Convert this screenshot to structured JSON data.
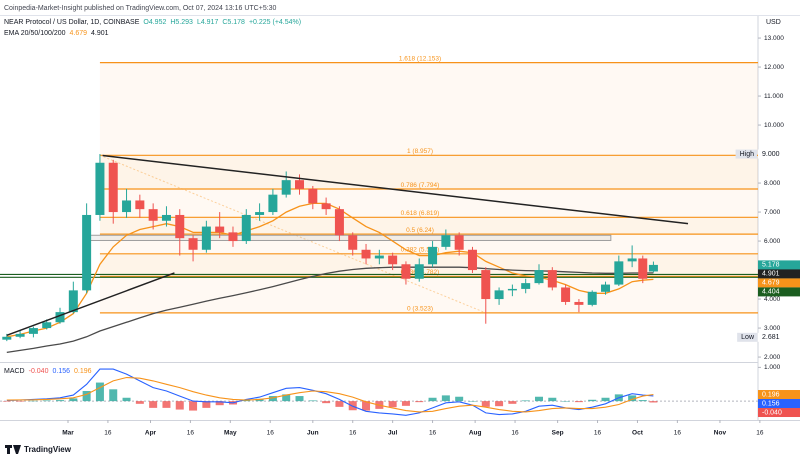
{
  "header": {
    "publisher": "Coinpedia-Market-Insight published on TradingView.com, Oct 07, 2024 13:16 UTC+5:30",
    "symbol": "NEAR Protocol / US Dollar, 1D, COINBASE",
    "ohlc": [
      "O4.952",
      "H5.293",
      "L4.917",
      "C5.178",
      "+0.225 (+4.54%)"
    ],
    "ema_label": "EMA 20/50/100/200",
    "ema_values": [
      "4.679",
      "4.901"
    ]
  },
  "footer": "TradingView",
  "chart_data": [
    {
      "type": "candlestick",
      "unit": "USD",
      "x": [
        "Feb 7",
        "Feb 12",
        "Feb 17",
        "Feb 22",
        "Feb 27",
        "Mar 3",
        "Mar 8",
        "Mar 13",
        "Mar 18",
        "Mar 23",
        "Mar 28",
        "Apr 2",
        "Apr 7",
        "Apr 12",
        "Apr 17",
        "Apr 22",
        "Apr 27",
        "May 2",
        "May 7",
        "May 12",
        "May 17",
        "May 22",
        "May 27",
        "Jun 1",
        "Jun 6",
        "Jun 11",
        "Jun 16",
        "Jun 21",
        "Jun 26",
        "Jul 1",
        "Jul 6",
        "Jul 11",
        "Jul 16",
        "Jul 21",
        "Jul 26",
        "Jul 31",
        "Aug 5",
        "Aug 10",
        "Aug 15",
        "Aug 20",
        "Aug 25",
        "Aug 30",
        "Sep 4",
        "Sep 9",
        "Sep 14",
        "Sep 19",
        "Sep 24",
        "Sep 29",
        "Oct 3",
        "Oct 7"
      ],
      "open": [
        2.6,
        2.7,
        2.8,
        3.0,
        3.2,
        3.55,
        4.3,
        6.9,
        8.7,
        7.0,
        7.4,
        7.1,
        6.7,
        6.9,
        6.1,
        5.7,
        6.5,
        6.3,
        6.0,
        6.9,
        7.0,
        7.6,
        8.1,
        7.8,
        7.3,
        7.1,
        6.2,
        5.7,
        5.4,
        5.5,
        5.2,
        4.7,
        5.2,
        5.8,
        6.2,
        5.7,
        5.0,
        4.0,
        4.3,
        4.35,
        4.55,
        5.0,
        4.4,
        3.9,
        3.8,
        4.25,
        4.5,
        5.3,
        5.4,
        4.952
      ],
      "high": [
        2.8,
        2.9,
        3.05,
        3.3,
        3.7,
        4.6,
        7.3,
        9.0,
        8.8,
        7.8,
        7.6,
        7.3,
        7.2,
        7.1,
        6.2,
        6.7,
        7.0,
        6.5,
        7.1,
        7.3,
        7.8,
        8.4,
        8.3,
        7.9,
        7.5,
        7.2,
        6.3,
        5.9,
        5.7,
        5.6,
        5.3,
        5.4,
        6.0,
        6.4,
        6.3,
        5.8,
        5.1,
        4.4,
        4.5,
        4.7,
        5.2,
        5.1,
        4.5,
        4.0,
        4.3,
        4.6,
        5.5,
        5.85,
        5.5,
        5.293
      ],
      "low": [
        2.55,
        2.65,
        2.68,
        2.95,
        3.15,
        3.5,
        4.2,
        6.7,
        6.6,
        6.8,
        6.8,
        6.4,
        6.5,
        5.5,
        5.3,
        5.6,
        6.1,
        5.8,
        5.9,
        6.7,
        6.9,
        7.5,
        7.6,
        7.1,
        6.9,
        6.0,
        5.5,
        5.2,
        5.2,
        5.0,
        4.5,
        4.6,
        5.1,
        5.7,
        5.5,
        4.9,
        3.15,
        3.8,
        4.1,
        4.2,
        4.5,
        4.3,
        3.8,
        3.55,
        3.75,
        4.15,
        4.45,
        5.1,
        4.55,
        4.917
      ],
      "close": [
        2.7,
        2.8,
        3.0,
        3.2,
        3.55,
        4.3,
        6.9,
        8.7,
        7.0,
        7.4,
        7.1,
        6.7,
        6.9,
        6.1,
        5.7,
        6.5,
        6.3,
        6.0,
        6.9,
        7.0,
        7.6,
        8.1,
        7.8,
        7.3,
        7.1,
        6.2,
        5.7,
        5.4,
        5.5,
        5.2,
        4.7,
        5.2,
        5.8,
        6.2,
        5.7,
        5.0,
        4.0,
        4.3,
        4.35,
        4.55,
        5.0,
        4.4,
        3.9,
        3.8,
        4.25,
        4.5,
        5.3,
        5.4,
        4.7,
        5.178
      ],
      "up_color": "#26a69a",
      "down_color": "#ef5350",
      "series": [
        {
          "color": "#f7931a",
          "values": [
            2.7,
            2.78,
            2.9,
            3.0,
            3.2,
            3.5,
            4.2,
            5.2,
            5.8,
            6.2,
            6.4,
            6.5,
            6.6,
            6.5,
            6.3,
            6.3,
            6.3,
            6.2,
            6.35,
            6.5,
            6.7,
            7.0,
            7.2,
            7.3,
            7.3,
            7.1,
            6.8,
            6.5,
            6.3,
            6.0,
            5.7,
            5.5,
            5.5,
            5.6,
            5.65,
            5.6,
            5.3,
            5.1,
            4.9,
            4.8,
            4.75,
            4.65,
            4.5,
            4.3,
            4.2,
            4.2,
            4.35,
            4.6,
            4.65,
            4.679
          ]
        },
        {
          "color": "#4a4a4a",
          "values": [
            2.16,
            2.23,
            2.3,
            2.38,
            2.45,
            2.55,
            2.7,
            2.9,
            3.05,
            3.2,
            3.35,
            3.5,
            3.62,
            3.72,
            3.82,
            3.93,
            4.03,
            4.12,
            4.22,
            4.32,
            4.43,
            4.55,
            4.67,
            4.78,
            4.88,
            4.96,
            5.02,
            5.06,
            5.08,
            5.1,
            5.1,
            5.1,
            5.1,
            5.1,
            5.1,
            5.08,
            5.05,
            5.02,
            5.0,
            4.98,
            4.97,
            4.96,
            4.94,
            4.92,
            4.9,
            4.89,
            4.89,
            4.9,
            4.9,
            4.901
          ]
        }
      ],
      "ylim": [
        1.83,
        13.45
      ],
      "yticks": [
        {
          "value": 2,
          "label": "2.000"
        },
        {
          "value": 3,
          "label": "3.000"
        },
        {
          "value": 4,
          "label": "4.000"
        },
        {
          "value": 5,
          "label": "5.000"
        },
        {
          "value": 6,
          "label": "6.000"
        },
        {
          "value": 7,
          "label": "7.000"
        },
        {
          "value": 8,
          "label": "8.000"
        },
        {
          "value": 9,
          "label": "9.000"
        },
        {
          "value": 10,
          "label": "10.000"
        },
        {
          "value": 11,
          "label": "11.000"
        },
        {
          "value": 12,
          "label": "12.000"
        },
        {
          "value": 13,
          "label": "13.000"
        }
      ],
      "xticks": [
        {
          "value": "Mar 1",
          "label": "Mar"
        },
        {
          "value": "Mar 16",
          "label": "16"
        },
        {
          "value": "Apr 1",
          "label": "Apr"
        },
        {
          "value": "Apr 16",
          "label": "16"
        },
        {
          "value": "May 1",
          "label": "May"
        },
        {
          "value": "May 16",
          "label": "16"
        },
        {
          "value": "Jun 1",
          "label": "Jun"
        },
        {
          "value": "Jun 16",
          "label": "16"
        },
        {
          "value": "Jul 1",
          "label": "Jul"
        },
        {
          "value": "Jul 16",
          "label": "16"
        },
        {
          "value": "Aug 1",
          "label": "Aug"
        },
        {
          "value": "Aug 16",
          "label": "16"
        },
        {
          "value": "Sep 1",
          "label": "Sep"
        },
        {
          "value": "Sep 16",
          "label": "16"
        },
        {
          "value": "Oct 1",
          "label": "Oct"
        },
        {
          "value": "Oct 16",
          "label": "16"
        },
        {
          "value": "Nov 1",
          "label": "Nov"
        },
        {
          "value": "Nov 16",
          "label": "16"
        }
      ],
      "fib_start": "Mar 13",
      "fib_color": "#f7931a",
      "fib_levels": [
        {
          "value": 12.153,
          "label": "1.618 (12.153)"
        },
        {
          "value": 8.957,
          "label": "1 (8.957)"
        },
        {
          "value": 7.794,
          "label": "0.786 (7.794)"
        },
        {
          "value": 6.819,
          "label": "0.618 (6.819)"
        },
        {
          "value": 6.24,
          "label": "0.5 (6.24)"
        },
        {
          "value": 5.561,
          "label": "0.382 (5.561)"
        },
        {
          "value": 4.782,
          "label": "0.236 (4.782)"
        },
        {
          "value": 3.523,
          "label": "0 (3.523)"
        }
      ],
      "trendlines": [
        {
          "x": [
            "Mar 14",
            "Oct 20"
          ],
          "y": [
            8.95,
            6.6
          ],
          "color": "#222222"
        },
        {
          "x": [
            "Feb 7",
            "Apr 10"
          ],
          "y": [
            2.75,
            4.9
          ],
          "color": "#222222"
        }
      ],
      "box": {
        "x": [
          "Mar 8",
          "Sep 21"
        ],
        "y": [
          6.02,
          6.2
        ],
        "color": "#9e9e9e"
      },
      "hlines": [
        {
          "value": 4.85,
          "color": "#1b5e20"
        },
        {
          "value": 4.75,
          "color": "#1b5e20"
        }
      ],
      "price_tags": [
        {
          "name": "High",
          "value": 9,
          "label": "9.000",
          "color": "#ffffff"
        },
        {
          "value": 5.178,
          "label": "5.178",
          "sublabel": "16:13:28",
          "color": "#26a69a"
        },
        {
          "value": 4.901,
          "label": "4.901",
          "color": "#222222"
        },
        {
          "value": 4.679,
          "label": "4.679",
          "color": "#f7931a"
        },
        {
          "value": 4.404,
          "label": "4.404",
          "color": "#1b5e20"
        },
        {
          "name": "Low",
          "value": 2.681,
          "label": "2.681",
          "color": "#ffffff"
        }
      ]
    },
    {
      "type": "macd",
      "title": "MACD",
      "x": [
        "Feb 7",
        "Feb 12",
        "Feb 17",
        "Feb 22",
        "Feb 27",
        "Mar 3",
        "Mar 8",
        "Mar 13",
        "Mar 18",
        "Mar 23",
        "Mar 28",
        "Apr 2",
        "Apr 7",
        "Apr 12",
        "Apr 17",
        "Apr 22",
        "Apr 27",
        "May 2",
        "May 7",
        "May 12",
        "May 17",
        "May 22",
        "May 27",
        "Jun 1",
        "Jun 6",
        "Jun 11",
        "Jun 16",
        "Jun 21",
        "Jun 26",
        "Jul 1",
        "Jul 6",
        "Jul 11",
        "Jul 16",
        "Jul 21",
        "Jul 26",
        "Jul 31",
        "Aug 5",
        "Aug 10",
        "Aug 15",
        "Aug 20",
        "Aug 25",
        "Aug 30",
        "Sep 4",
        "Sep 9",
        "Sep 14",
        "Sep 19",
        "Sep 24",
        "Sep 29",
        "Oct 3",
        "Oct 7"
      ],
      "histogram": [
        -0.01,
        -0.005,
        0.01,
        0.02,
        0.03,
        0.08,
        0.3,
        0.55,
        0.35,
        0.1,
        -0.08,
        -0.2,
        -0.2,
        -0.25,
        -0.28,
        -0.2,
        -0.12,
        -0.1,
        0.02,
        0.07,
        0.15,
        0.2,
        0.15,
        0.02,
        -0.06,
        -0.17,
        -0.27,
        -0.28,
        -0.23,
        -0.18,
        -0.14,
        -0.03,
        0.1,
        0.17,
        0.13,
        0.0,
        -0.17,
        -0.15,
        -0.08,
        0.02,
        0.13,
        0.1,
        0.0,
        -0.03,
        0.04,
        0.1,
        0.2,
        0.17,
        0.03,
        -0.04
      ],
      "up_color": "#26a69a",
      "down_color": "#ef5350",
      "series": [
        {
          "color": "#2962ff",
          "values": [
            0.02,
            0.03,
            0.05,
            0.07,
            0.1,
            0.18,
            0.5,
            0.95,
            0.95,
            0.8,
            0.6,
            0.4,
            0.3,
            0.15,
            0.0,
            -0.02,
            -0.02,
            -0.05,
            0.05,
            0.12,
            0.25,
            0.38,
            0.4,
            0.32,
            0.22,
            0.05,
            -0.15,
            -0.3,
            -0.35,
            -0.38,
            -0.42,
            -0.35,
            -0.2,
            -0.05,
            -0.02,
            -0.12,
            -0.35,
            -0.4,
            -0.38,
            -0.3,
            -0.15,
            -0.12,
            -0.2,
            -0.25,
            -0.18,
            -0.08,
            0.1,
            0.22,
            0.18,
            0.156
          ]
        },
        {
          "color": "#f7931a",
          "values": [
            0.03,
            0.035,
            0.04,
            0.05,
            0.07,
            0.1,
            0.2,
            0.4,
            0.6,
            0.7,
            0.68,
            0.6,
            0.5,
            0.4,
            0.28,
            0.18,
            0.1,
            0.05,
            0.03,
            0.05,
            0.1,
            0.18,
            0.25,
            0.3,
            0.28,
            0.22,
            0.12,
            -0.02,
            -0.12,
            -0.2,
            -0.28,
            -0.32,
            -0.3,
            -0.22,
            -0.15,
            -0.12,
            -0.18,
            -0.25,
            -0.3,
            -0.32,
            -0.28,
            -0.22,
            -0.2,
            -0.22,
            -0.22,
            -0.18,
            -0.1,
            0.05,
            0.15,
            0.196
          ]
        }
      ],
      "ylim": [
        -0.5,
        1.1
      ],
      "yticks": [
        {
          "value": 1,
          "label": "1.000"
        }
      ],
      "price_tags": [
        {
          "value": -0.04,
          "label": "-0.040",
          "color": "#ef5350"
        },
        {
          "value": 0.156,
          "label": "0.156",
          "color": "#2962ff"
        },
        {
          "value": 0.196,
          "label": "0.196",
          "color": "#f7931a"
        }
      ]
    }
  ]
}
